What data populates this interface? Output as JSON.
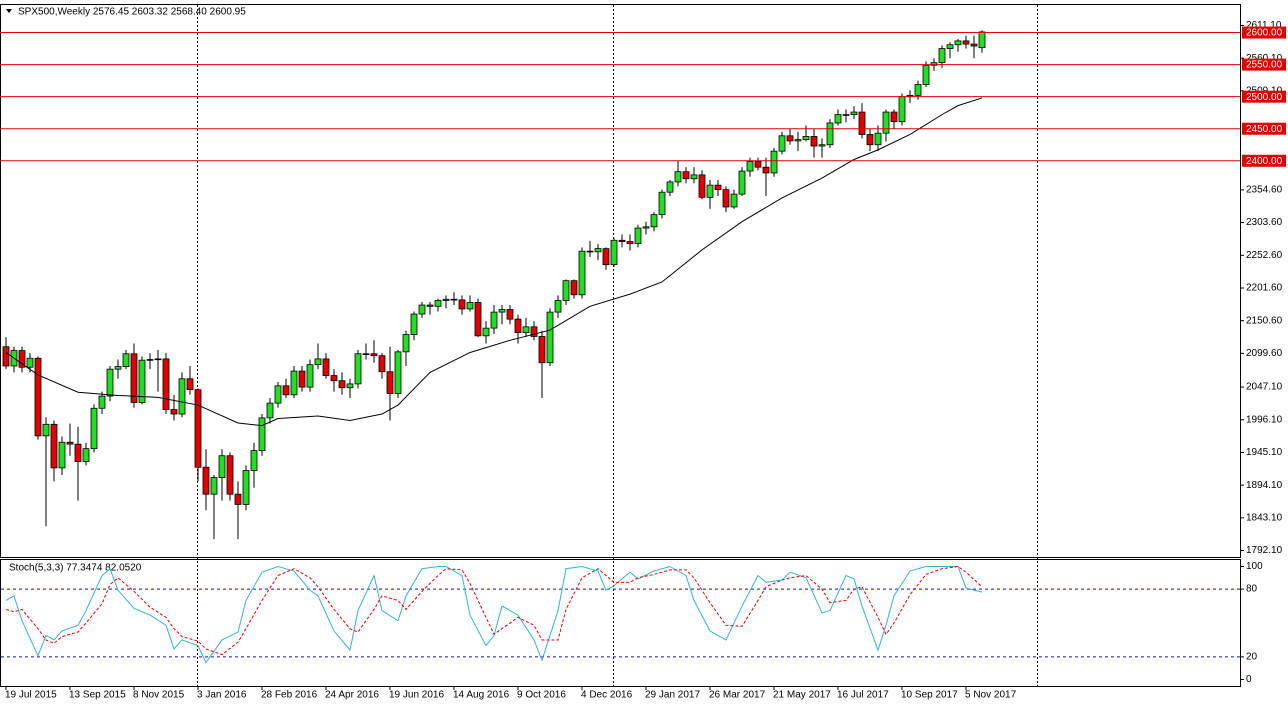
{
  "chart_data": [
    {
      "type": "candlestick",
      "title": "SPX500,Weekly  2576.45 2603.32 2568.40 2600.95",
      "xlim": [
        -0.75,
        154.25
      ],
      "ylim": [
        1781.25,
        2643.75
      ],
      "yticks": [
        {
          "value": 2611.1,
          "label": "2611.10"
        },
        {
          "value": 2560.1,
          "label": "2560.10"
        },
        {
          "value": 2509.1,
          "label": "2509.10"
        },
        {
          "value": 2354.6,
          "label": "2354.60"
        },
        {
          "value": 2303.6,
          "label": "2303.60"
        },
        {
          "value": 2252.6,
          "label": "2252.60"
        },
        {
          "value": 2201.6,
          "label": "2201.60"
        },
        {
          "value": 2150.6,
          "label": "2150.60"
        },
        {
          "value": 2099.6,
          "label": "2099.60"
        },
        {
          "value": 2047.1,
          "label": "2047.10"
        },
        {
          "value": 1996.1,
          "label": "1996.10"
        },
        {
          "value": 1945.1,
          "label": "1945.10"
        },
        {
          "value": 1894.1,
          "label": "1894.10"
        },
        {
          "value": 1843.1,
          "label": "1843.10"
        },
        {
          "value": 1792.1,
          "label": "1792.10"
        }
      ],
      "up_color": "#22dd22",
      "down_color": "#e00000",
      "level_color": "#e00000",
      "levels": [
        {
          "value": 2600,
          "label": "2600.00"
        },
        {
          "value": 2550,
          "label": "2550.00"
        },
        {
          "value": 2500,
          "label": "2500.00"
        },
        {
          "value": 2450,
          "label": "2450.00"
        },
        {
          "value": 2400,
          "label": "2400.00"
        }
      ],
      "candles": [
        [
          2110,
          2125,
          2075,
          2080
        ],
        [
          2080,
          2110,
          2070,
          2104
        ],
        [
          2104,
          2110,
          2070,
          2078
        ],
        [
          2078,
          2100,
          2070,
          2092
        ],
        [
          2092,
          2095,
          1965,
          1971
        ],
        [
          1971,
          2000,
          1830,
          1989
        ],
        [
          1989,
          1995,
          1900,
          1921
        ],
        [
          1921,
          1970,
          1910,
          1961
        ],
        [
          1961,
          1990,
          1940,
          1958
        ],
        [
          1958,
          1985,
          1870,
          1931
        ],
        [
          1931,
          1960,
          1925,
          1951
        ],
        [
          1951,
          2020,
          1945,
          2014
        ],
        [
          2014,
          2040,
          2005,
          2033
        ],
        [
          2033,
          2080,
          2025,
          2075
        ],
        [
          2075,
          2090,
          2060,
          2079
        ],
        [
          2079,
          2105,
          2075,
          2099
        ],
        [
          2099,
          2115,
          2015,
          2023
        ],
        [
          2023,
          2095,
          2020,
          2089
        ],
        [
          2089,
          2100,
          2075,
          2090
        ],
        [
          2090,
          2105,
          2040,
          2091
        ],
        [
          2091,
          2100,
          2005,
          2012
        ],
        [
          2012,
          2035,
          1995,
          2005
        ],
        [
          2005,
          2070,
          2000,
          2060
        ],
        [
          2060,
          2080,
          2035,
          2043
        ],
        [
          2043,
          2045,
          1900,
          1922
        ],
        [
          1922,
          1950,
          1855,
          1880
        ],
        [
          1880,
          1910,
          1810,
          1906
        ],
        [
          1906,
          1950,
          1870,
          1940
        ],
        [
          1940,
          1945,
          1870,
          1880
        ],
        [
          1880,
          1900,
          1810,
          1864
        ],
        [
          1864,
          1925,
          1855,
          1917
        ],
        [
          1917,
          1960,
          1890,
          1948
        ],
        [
          1948,
          2005,
          1940,
          1999
        ],
        [
          1999,
          2030,
          1990,
          2022
        ],
        [
          2022,
          2055,
          2015,
          2049
        ],
        [
          2049,
          2060,
          2030,
          2035
        ],
        [
          2035,
          2080,
          2030,
          2072
        ],
        [
          2072,
          2080,
          2040,
          2047
        ],
        [
          2047,
          2090,
          2040,
          2082
        ],
        [
          2082,
          2115,
          2075,
          2091
        ],
        [
          2091,
          2100,
          2060,
          2065
        ],
        [
          2065,
          2075,
          2040,
          2057
        ],
        [
          2057,
          2070,
          2035,
          2046
        ],
        [
          2046,
          2060,
          2030,
          2052
        ],
        [
          2052,
          2105,
          2045,
          2099
        ],
        [
          2099,
          2115,
          2090,
          2099
        ],
        [
          2099,
          2120,
          2085,
          2096
        ],
        [
          2096,
          2100,
          2060,
          2071
        ],
        [
          2071,
          2110,
          1995,
          2037
        ],
        [
          2037,
          2105,
          2030,
          2102
        ],
        [
          2102,
          2135,
          2080,
          2129
        ],
        [
          2129,
          2165,
          2120,
          2161
        ],
        [
          2161,
          2180,
          2155,
          2175
        ],
        [
          2175,
          2180,
          2160,
          2173
        ],
        [
          2173,
          2185,
          2165,
          2182
        ],
        [
          2182,
          2190,
          2170,
          2184
        ],
        [
          2184,
          2195,
          2175,
          2183
        ],
        [
          2183,
          2190,
          2160,
          2169
        ],
        [
          2169,
          2190,
          2165,
          2179
        ],
        [
          2179,
          2185,
          2125,
          2127
        ],
        [
          2127,
          2150,
          2115,
          2139
        ],
        [
          2139,
          2175,
          2130,
          2164
        ],
        [
          2164,
          2175,
          2145,
          2168
        ],
        [
          2168,
          2175,
          2145,
          2153
        ],
        [
          2153,
          2160,
          2115,
          2132
        ],
        [
          2132,
          2155,
          2125,
          2141
        ],
        [
          2141,
          2150,
          2120,
          2126
        ],
        [
          2126,
          2135,
          2030,
          2085
        ],
        [
          2085,
          2170,
          2080,
          2164
        ],
        [
          2164,
          2190,
          2155,
          2182
        ],
        [
          2182,
          2215,
          2175,
          2213
        ],
        [
          2213,
          2215,
          2185,
          2191
        ],
        [
          2191,
          2265,
          2185,
          2259
        ],
        [
          2259,
          2275,
          2250,
          2258
        ],
        [
          2258,
          2270,
          2245,
          2263
        ],
        [
          2263,
          2265,
          2230,
          2238
        ],
        [
          2238,
          2280,
          2235,
          2276
        ],
        [
          2276,
          2285,
          2265,
          2274
        ],
        [
          2274,
          2285,
          2260,
          2271
        ],
        [
          2271,
          2300,
          2265,
          2295
        ],
        [
          2295,
          2305,
          2285,
          2297
        ],
        [
          2297,
          2320,
          2290,
          2316
        ],
        [
          2316,
          2355,
          2310,
          2351
        ],
        [
          2351,
          2370,
          2345,
          2367
        ],
        [
          2367,
          2400,
          2360,
          2383
        ],
        [
          2383,
          2390,
          2365,
          2372
        ],
        [
          2372,
          2390,
          2365,
          2378
        ],
        [
          2378,
          2385,
          2340,
          2343
        ],
        [
          2343,
          2370,
          2325,
          2362
        ],
        [
          2362,
          2370,
          2345,
          2355
        ],
        [
          2355,
          2360,
          2320,
          2328
        ],
        [
          2328,
          2355,
          2325,
          2348
        ],
        [
          2348,
          2390,
          2345,
          2384
        ],
        [
          2384,
          2405,
          2375,
          2399
        ],
        [
          2399,
          2405,
          2385,
          2390
        ],
        [
          2390,
          2405,
          2345,
          2381
        ],
        [
          2381,
          2420,
          2375,
          2415
        ],
        [
          2415,
          2445,
          2410,
          2439
        ],
        [
          2439,
          2450,
          2425,
          2431
        ],
        [
          2431,
          2445,
          2415,
          2433
        ],
        [
          2433,
          2455,
          2430,
          2438
        ],
        [
          2438,
          2450,
          2405,
          2423
        ],
        [
          2423,
          2435,
          2405,
          2425
        ],
        [
          2425,
          2465,
          2420,
          2459
        ],
        [
          2459,
          2480,
          2455,
          2472
        ],
        [
          2472,
          2480,
          2460,
          2472
        ],
        [
          2472,
          2485,
          2465,
          2476
        ],
        [
          2476,
          2490,
          2435,
          2441
        ],
        [
          2441,
          2450,
          2415,
          2425
        ],
        [
          2425,
          2455,
          2415,
          2443
        ],
        [
          2443,
          2480,
          2430,
          2476
        ],
        [
          2476,
          2480,
          2450,
          2461
        ],
        [
          2461,
          2505,
          2455,
          2500
        ],
        [
          2500,
          2510,
          2490,
          2502
        ],
        [
          2502,
          2525,
          2495,
          2519
        ],
        [
          2519,
          2555,
          2515,
          2549
        ],
        [
          2549,
          2560,
          2540,
          2553
        ],
        [
          2553,
          2580,
          2545,
          2575
        ],
        [
          2575,
          2585,
          2560,
          2581
        ],
        [
          2581,
          2590,
          2570,
          2587
        ],
        [
          2587,
          2595,
          2575,
          2582
        ],
        [
          2582,
          2595,
          2560,
          2579
        ],
        [
          2576.45,
          2603.32,
          2568.4,
          2600.95
        ]
      ],
      "ma": {
        "color": "#000000",
        "x": [
          0,
          4,
          9,
          14,
          19,
          24,
          29,
          32,
          34,
          39,
          43,
          47,
          49,
          53,
          58,
          63,
          68,
          73,
          78,
          82,
          87,
          92,
          97,
          102,
          106,
          109,
          113,
          117,
          119,
          122
        ],
        "values": [
          2101,
          2066,
          2039,
          2034,
          2031,
          2019,
          1991,
          1987,
          1998,
          2002,
          1995,
          2005,
          2019,
          2070,
          2101,
          2120,
          2136,
          2173,
          2192,
          2211,
          2261,
          2305,
          2342,
          2373,
          2402,
          2417,
          2441,
          2472,
          2486,
          2498
        ]
      }
    },
    {
      "type": "line",
      "title": "Stoch(5,3,3) 77.3474 82.0520",
      "xlim": [
        -0.75,
        154.25
      ],
      "ylim": [
        -6.19,
        106.19
      ],
      "yticks": [
        100,
        80,
        20,
        0
      ],
      "levels": [
        80,
        20
      ],
      "level_color": "#1010c0",
      "xticks": [
        {
          "value": 0,
          "label": "19 Jul 2015"
        },
        {
          "value": 8,
          "label": "13 Sep 2015"
        },
        {
          "value": 16,
          "label": "8 Nov 2015"
        },
        {
          "value": 24,
          "label": "3 Jan 2016"
        },
        {
          "value": 32,
          "label": "28 Feb 2016"
        },
        {
          "value": 40,
          "label": "24 Apr 2016"
        },
        {
          "value": 48,
          "label": "19 Jun 2016"
        },
        {
          "value": 56,
          "label": "14 Aug 2016"
        },
        {
          "value": 64,
          "label": "9 Oct 2016"
        },
        {
          "value": 72,
          "label": "4 Dec 2016"
        },
        {
          "value": 80,
          "label": "29 Jan 2017"
        },
        {
          "value": 88,
          "label": "26 Mar 2017"
        },
        {
          "value": 96,
          "label": "21 May 2017"
        },
        {
          "value": 104,
          "label": "16 Jul 2017"
        },
        {
          "value": 112,
          "label": "10 Sep 2017"
        },
        {
          "value": 120,
          "label": "5 Nov 2017"
        }
      ],
      "x": [
        0,
        1,
        2,
        4,
        5,
        6,
        7,
        9,
        10,
        12,
        13,
        14,
        16,
        18,
        20,
        21,
        22,
        24,
        25,
        27,
        29,
        30,
        32,
        34,
        36,
        38,
        39,
        41,
        43,
        44,
        46,
        47,
        49,
        50,
        52,
        54,
        55,
        57,
        58,
        60,
        61,
        62,
        64,
        66,
        67,
        69,
        70,
        72,
        74,
        75,
        76,
        78,
        79,
        81,
        83,
        85,
        86,
        88,
        90,
        92,
        94,
        95,
        97,
        98,
        100,
        102,
        103,
        105,
        106,
        107,
        109,
        110,
        111,
        113,
        115,
        117,
        119,
        120,
        122
      ],
      "series": [
        {
          "color": "#3ab0c8",
          "dashed": false,
          "values": [
            70,
            74,
            52,
            21,
            39,
            35,
            43,
            48,
            61,
            92,
            98,
            79,
            63,
            57,
            48,
            27,
            35,
            30,
            15,
            35,
            42,
            70,
            95,
            100,
            96,
            79,
            74,
            43,
            26,
            61,
            92,
            61,
            52,
            74,
            98,
            100,
            100,
            92,
            57,
            30,
            39,
            65,
            57,
            35,
            17,
            61,
            98,
            100,
            96,
            79,
            83,
            95,
            89,
            96,
            100,
            92,
            70,
            43,
            35,
            65,
            92,
            86,
            88,
            95,
            90,
            59,
            61,
            92,
            89,
            65,
            26,
            48,
            74,
            96,
            100,
            100,
            100,
            81,
            77.3474
          ]
        },
        {
          "color": "#e00000",
          "dashed": true,
          "values": [
            62,
            60,
            62,
            45,
            35,
            32,
            38,
            42,
            50,
            67,
            84,
            90,
            78,
            64,
            55,
            45,
            38,
            34,
            27,
            22,
            33,
            45,
            70,
            92,
            98,
            90,
            82,
            62,
            45,
            42,
            62,
            74,
            70,
            62,
            78,
            92,
            98,
            97,
            85,
            55,
            40,
            45,
            55,
            48,
            35,
            35,
            62,
            90,
            98,
            92,
            86,
            86,
            90,
            93,
            97,
            97,
            90,
            68,
            48,
            47,
            70,
            82,
            88,
            90,
            92,
            80,
            68,
            70,
            80,
            82,
            55,
            40,
            50,
            75,
            93,
            98,
            100,
            95,
            82.052
          ]
        }
      ]
    }
  ]
}
